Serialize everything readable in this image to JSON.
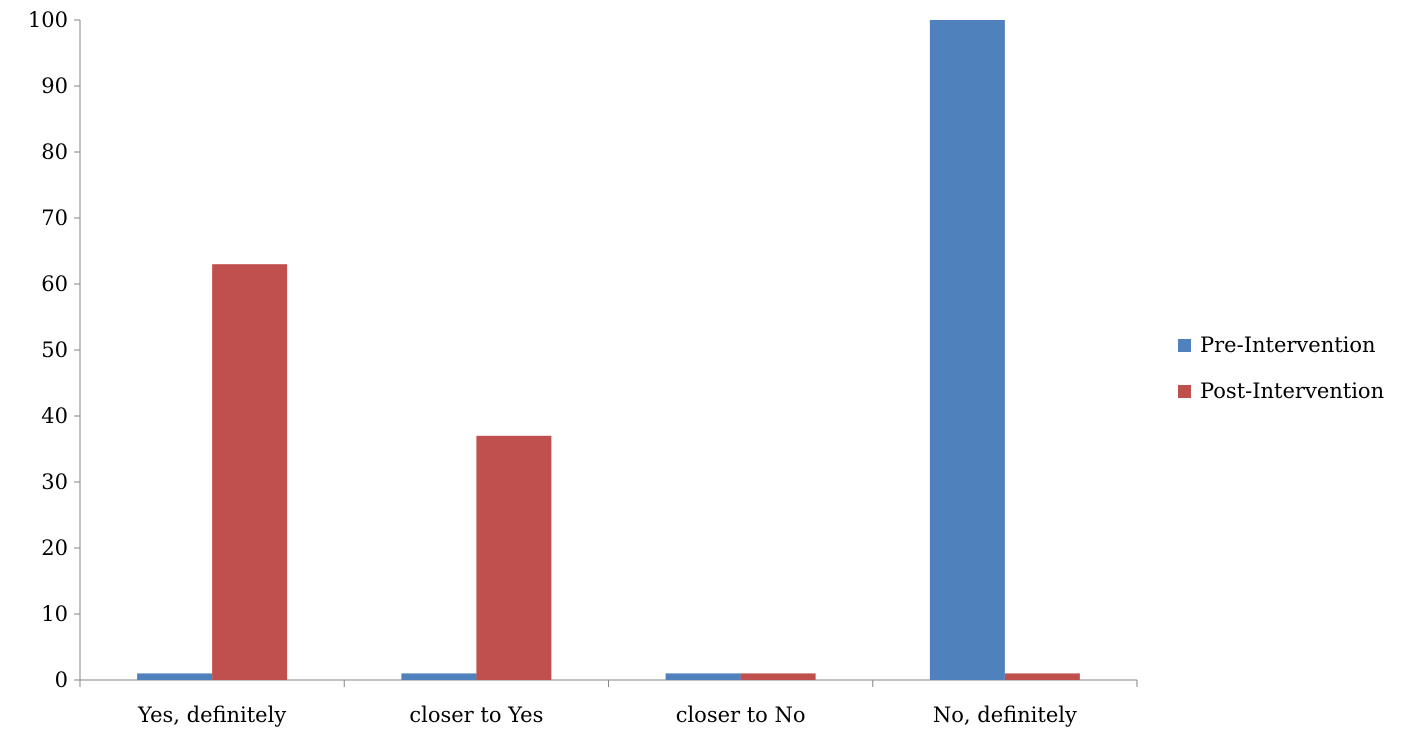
{
  "chart_data": {
    "type": "bar",
    "categories": [
      "Yes, definitely",
      "closer to Yes",
      "closer to No",
      "No, definitely"
    ],
    "series": [
      {
        "name": "Pre-Intervention",
        "color": "#4F81BD",
        "values": [
          1,
          1,
          1,
          100
        ]
      },
      {
        "name": "Post-Intervention",
        "color": "#C0504D",
        "values": [
          63,
          37,
          1,
          1
        ]
      }
    ],
    "ylim": [
      0,
      100
    ],
    "yticks": [
      0,
      10,
      20,
      30,
      40,
      50,
      60,
      70,
      80,
      90,
      100
    ],
    "xlabel": "",
    "ylabel": "",
    "title": "",
    "grid": false,
    "legend_position": "right"
  }
}
